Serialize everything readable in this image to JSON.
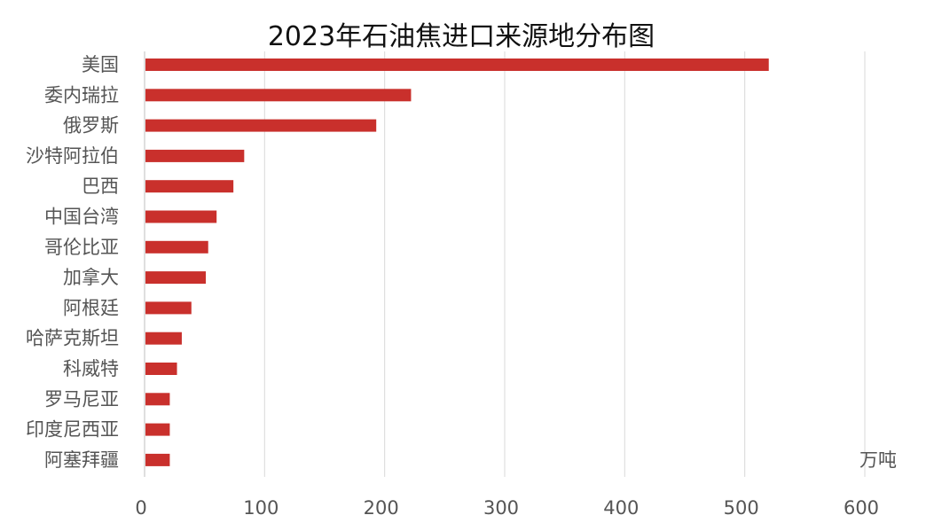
{
  "chart_data": {
    "type": "bar",
    "orientation": "horizontal",
    "title": "2023年石油焦进口来源地分布图",
    "unit": "万吨",
    "categories": [
      "美国",
      "委内瑞拉",
      "俄罗斯",
      "沙特阿拉伯",
      "巴西",
      "中国台湾",
      "哥伦比亚",
      "加拿大",
      "阿根廷",
      "哈萨克斯坦",
      "科威特",
      "罗马尼亚",
      "印度尼西亚",
      "阿塞拜疆"
    ],
    "values": [
      520,
      222,
      193,
      83,
      74,
      60,
      53,
      51,
      39,
      31,
      27,
      21,
      21,
      21
    ],
    "xlim": [
      0,
      600
    ],
    "xticks": [
      0,
      100,
      200,
      300,
      400,
      500,
      600
    ],
    "grid": true,
    "bar_color": "#c9302c"
  }
}
